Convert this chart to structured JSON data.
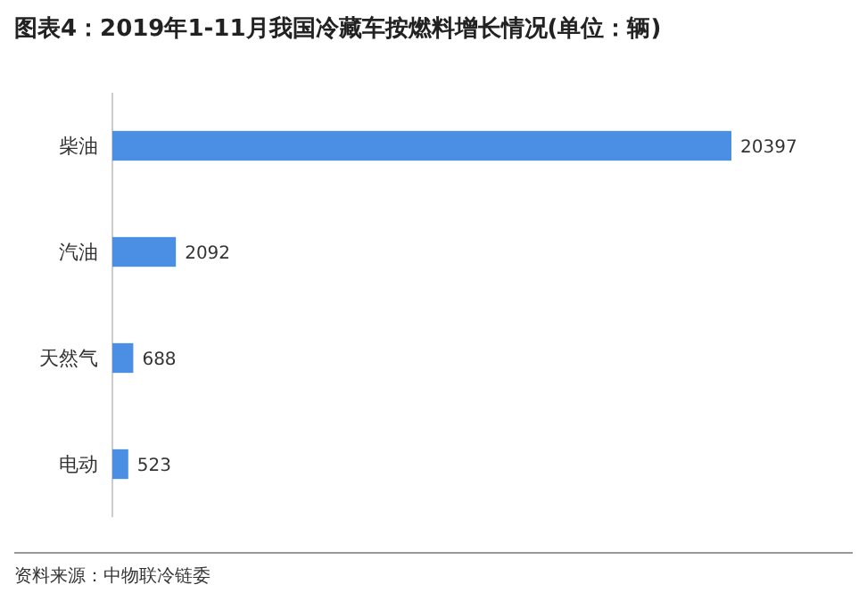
{
  "chart_data": {
    "type": "bar",
    "orientation": "horizontal",
    "title": "图表4：2019年1-11月我国冷藏车按燃料增长情况(单位：辆)",
    "categories": [
      "柴油",
      "汽油",
      "天然气",
      "电动"
    ],
    "values": [
      20397,
      2092,
      688,
      523
    ],
    "color": "#4a8fe3",
    "data_labels": true,
    "annotations": [
      "资料来源：中物联冷链委"
    ]
  }
}
